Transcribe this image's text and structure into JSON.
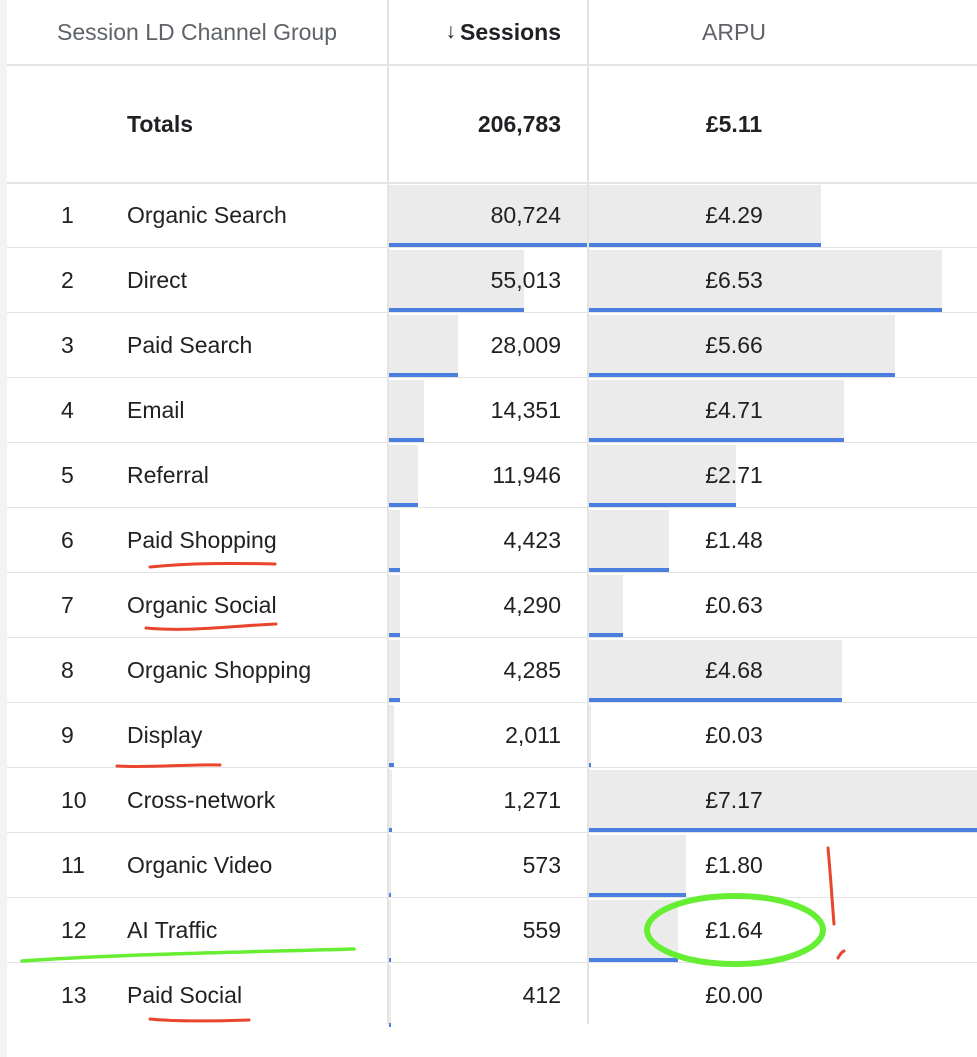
{
  "header": {
    "dimension_label": "Session LD Channel Group",
    "sessions_label": "Sessions",
    "sort_arrow": "↓",
    "arpu_label": "ARPU"
  },
  "totals": {
    "label": "Totals",
    "sessions": "206,783",
    "arpu": "£5.11"
  },
  "colors": {
    "bar_fill": "#ebebeb",
    "bar_accent": "#4a7fe0",
    "red_marker": "#e8452c",
    "green_marker": "#66ee33"
  },
  "rows": [
    {
      "rank": "1",
      "channel": "Organic Search",
      "sessions": "80,724",
      "arpu": "£4.29",
      "sessions_value": 80724,
      "arpu_value": 4.29
    },
    {
      "rank": "2",
      "channel": "Direct",
      "sessions": "55,013",
      "arpu": "£6.53",
      "sessions_value": 55013,
      "arpu_value": 6.53
    },
    {
      "rank": "3",
      "channel": "Paid Search",
      "sessions": "28,009",
      "arpu": "£5.66",
      "sessions_value": 28009,
      "arpu_value": 5.66
    },
    {
      "rank": "4",
      "channel": "Email",
      "sessions": "14,351",
      "arpu": "£4.71",
      "sessions_value": 14351,
      "arpu_value": 4.71
    },
    {
      "rank": "5",
      "channel": "Referral",
      "sessions": "11,946",
      "arpu": "£2.71",
      "sessions_value": 11946,
      "arpu_value": 2.71
    },
    {
      "rank": "6",
      "channel": "Paid Shopping",
      "sessions": "4,423",
      "arpu": "£1.48",
      "sessions_value": 4423,
      "arpu_value": 1.48
    },
    {
      "rank": "7",
      "channel": "Organic Social",
      "sessions": "4,290",
      "arpu": "£0.63",
      "sessions_value": 4290,
      "arpu_value": 0.63
    },
    {
      "rank": "8",
      "channel": "Organic Shopping",
      "sessions": "4,285",
      "arpu": "£4.68",
      "sessions_value": 4285,
      "arpu_value": 4.68
    },
    {
      "rank": "9",
      "channel": "Display",
      "sessions": "2,011",
      "arpu": "£0.03",
      "sessions_value": 2011,
      "arpu_value": 0.03
    },
    {
      "rank": "10",
      "channel": "Cross-network",
      "sessions": "1,271",
      "arpu": "£7.17",
      "sessions_value": 1271,
      "arpu_value": 7.17
    },
    {
      "rank": "11",
      "channel": "Organic Video",
      "sessions": "573",
      "arpu": "£1.80",
      "sessions_value": 573,
      "arpu_value": 1.8
    },
    {
      "rank": "12",
      "channel": "AI Traffic",
      "sessions": "559",
      "arpu": "£1.64",
      "sessions_value": 559,
      "arpu_value": 1.64
    },
    {
      "rank": "13",
      "channel": "Paid Social",
      "sessions": "412",
      "arpu": "£0.00",
      "sessions_value": 412,
      "arpu_value": 0.0
    }
  ]
}
